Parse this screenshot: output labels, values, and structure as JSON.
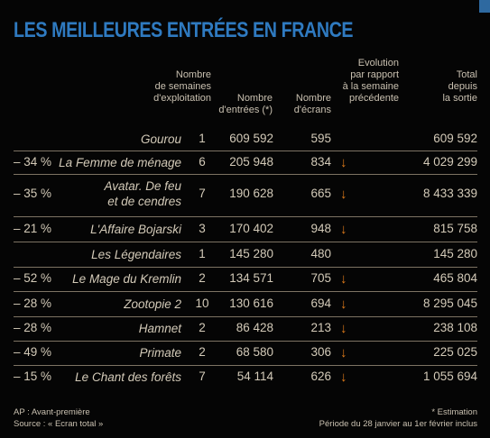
{
  "title": "LES MEILLEURES ENTRÉES EN FRANCE",
  "headers": {
    "weeks": "Nombre\nde semaines\nd'exploitation",
    "entries": "Nombre\nd'entrées (*)",
    "screens": "Nombre\nd'écrans",
    "evolution": "Evolution\npar rapport\nà la semaine\nprécédente",
    "total": "Total\ndepuis\nla sortie"
  },
  "rows": [
    {
      "film": "Gourou",
      "weeks": "1",
      "entries": "609 592",
      "screens": "595",
      "arrow": "",
      "evolution": "",
      "total": "609 592"
    },
    {
      "film": "La Femme de ménage",
      "weeks": "6",
      "entries": "205 948",
      "screens": "834",
      "arrow": "↓",
      "evolution": "– 34 %",
      "total": "4 029 299"
    },
    {
      "film": "Avatar. De feu\net de cendres",
      "weeks": "7",
      "entries": "190 628",
      "screens": "665",
      "arrow": "↓",
      "evolution": "– 35 %",
      "total": "8 433 339"
    },
    {
      "film": "L'Affaire Bojarski",
      "weeks": "3",
      "entries": "170 402",
      "screens": "948",
      "arrow": "↓",
      "evolution": "– 21 %",
      "total": "815 758"
    },
    {
      "film": "Les Légendaires",
      "weeks": "1",
      "entries": "145 280",
      "screens": "480",
      "arrow": "",
      "evolution": "",
      "total": "145 280"
    },
    {
      "film": "Le Mage du Kremlin",
      "weeks": "2",
      "entries": "134 571",
      "screens": "705",
      "arrow": "↓",
      "evolution": "– 52 %",
      "total": "465 804"
    },
    {
      "film": "Zootopie 2",
      "weeks": "10",
      "entries": "130 616",
      "screens": "694",
      "arrow": "↓",
      "evolution": "– 28 %",
      "total": "8 295 045"
    },
    {
      "film": "Hamnet",
      "weeks": "2",
      "entries": "86 428",
      "screens": "213",
      "arrow": "↓",
      "evolution": "– 28 %",
      "total": "238 108"
    },
    {
      "film": "Primate",
      "weeks": "2",
      "entries": "68 580",
      "screens": "306",
      "arrow": "↓",
      "evolution": "– 49 %",
      "total": "225 025"
    },
    {
      "film": "Le Chant des forêts",
      "weeks": "7",
      "entries": "54 114",
      "screens": "626",
      "arrow": "↓",
      "evolution": "– 15 %",
      "total": "1 055 694"
    }
  ],
  "footer": {
    "left_line1": "AP : Avant-première",
    "left_line2": "Source : « Ecran total »",
    "right_line1": "* Estimation",
    "right_line2": "Période du 28 janvier au 1er février inclus"
  },
  "colors": {
    "title": "#2f7ac0",
    "arrow": "#e07b1a",
    "text": "#d3cab8",
    "corner": "#2e69a0"
  }
}
